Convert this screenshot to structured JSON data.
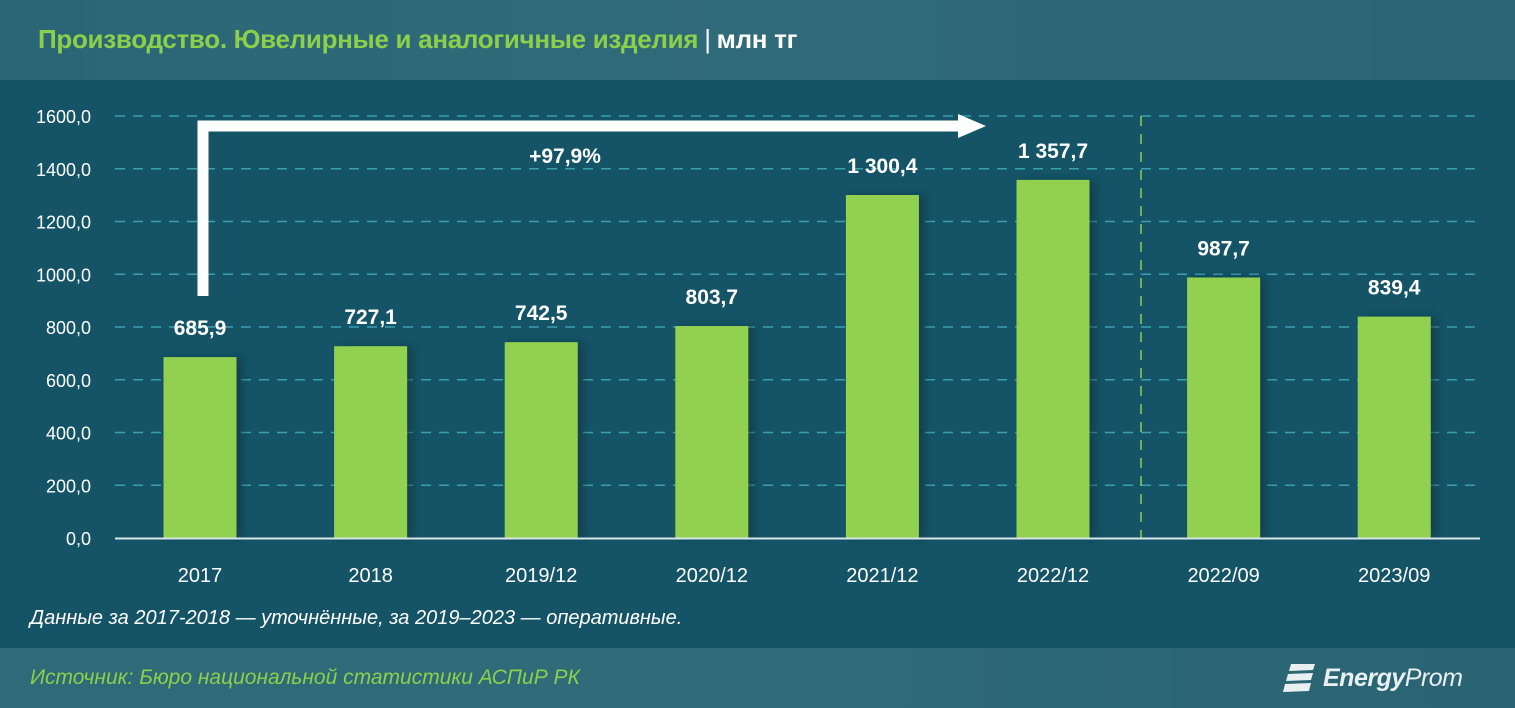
{
  "header": {
    "title": "Производство. Ювелирные и аналогичные изделия",
    "separator": "|",
    "unit": "млн тг"
  },
  "note": "Данные за 2017-2018 — уточнённые, за 2019–2023 — оперативные.",
  "footer": {
    "source": "Источник: Бюро национальной статистики АСПиР РК",
    "logo_icon": "energyprom-stripes-icon",
    "logo_bold": "Energy",
    "logo_light": "Prom"
  },
  "annotation": {
    "growth_label": "+97,9%",
    "arrow_from": "2017",
    "arrow_to": "2022/12"
  },
  "colors": {
    "background": "#145466",
    "header_bg": "#2e6a78",
    "bar": "#92d050",
    "title_green": "#8ccf4b",
    "gridline": "#3a9fb0",
    "text": "#ffffff"
  },
  "chart_data": {
    "type": "bar",
    "title": "Производство. Ювелирные и аналогичные изделия | млн тг",
    "xlabel": "",
    "ylabel": "млн тг",
    "ylim": [
      0,
      1600
    ],
    "yticks": [
      "0,0",
      "200,0",
      "400,0",
      "600,0",
      "800,0",
      "1000,0",
      "1200,0",
      "1400,0",
      "1600,0"
    ],
    "grid": true,
    "legend": null,
    "categories": [
      "2017",
      "2018",
      "2019/12",
      "2020/12",
      "2021/12",
      "2022/12",
      "2022/09",
      "2023/09"
    ],
    "values": [
      685.9,
      727.1,
      742.5,
      803.7,
      1300.4,
      1357.7,
      987.7,
      839.4
    ],
    "labels": [
      "685,9",
      "727,1",
      "742,5",
      "803,7",
      "1 300,4",
      "1 357,7",
      "987,7",
      "839,4"
    ],
    "annotations": [
      {
        "text": "+97,9%",
        "type": "arrow",
        "from": "2017",
        "to": "2022/12"
      },
      {
        "type": "vertical-dashed-separator",
        "between": [
          "2022/12",
          "2022/09"
        ]
      }
    ]
  }
}
